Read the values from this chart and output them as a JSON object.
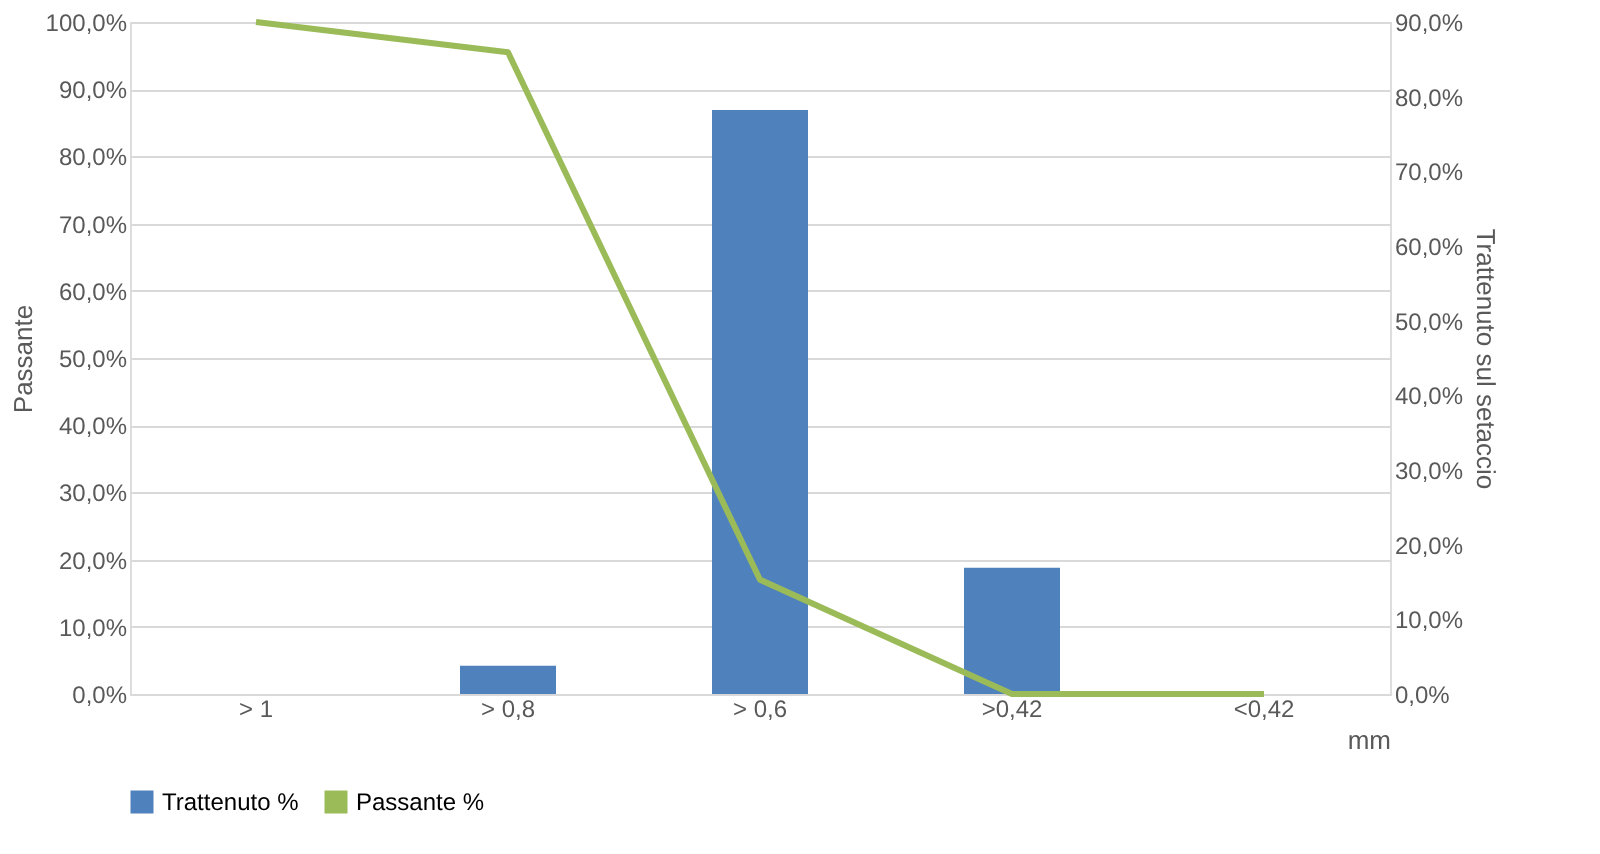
{
  "chart_data": {
    "type": "bar",
    "categories": [
      "> 1",
      "> 0,8",
      "> 0,6",
      ">0,42",
      "<0,42"
    ],
    "xlabel": "mm",
    "ylabel": "Passante",
    "y2label": "Trattenuto sul setaccio",
    "series": [
      {
        "name": "Trattenuto %",
        "axis": "y2",
        "color": "#4f81bd",
        "values": [
          0,
          3.8,
          78.2,
          16.9,
          0
        ]
      },
      {
        "name": "Passante %",
        "type": "line",
        "axis": "y",
        "color": "#9bbb59",
        "values": [
          100,
          95.5,
          17,
          0,
          0
        ]
      }
    ],
    "ylim": [
      0,
      100
    ],
    "yticks": [
      {
        "value": 0,
        "label": "0,0%"
      },
      {
        "value": 10,
        "label": "10,0%"
      },
      {
        "value": 20,
        "label": "20,0%"
      },
      {
        "value": 30,
        "label": "30,0%"
      },
      {
        "value": 40,
        "label": "40,0%"
      },
      {
        "value": 50,
        "label": "50,0%"
      },
      {
        "value": 60,
        "label": "60,0%"
      },
      {
        "value": 70,
        "label": "70,0%"
      },
      {
        "value": 80,
        "label": "80,0%"
      },
      {
        "value": 90,
        "label": "90,0%"
      },
      {
        "value": 100,
        "label": "100,0%"
      }
    ],
    "y2lim": [
      0,
      90
    ],
    "y2ticks": [
      {
        "value": 0,
        "label": "0,0%"
      },
      {
        "value": 10,
        "label": "10,0%"
      },
      {
        "value": 20,
        "label": "20,0%"
      },
      {
        "value": 30,
        "label": "30,0%"
      },
      {
        "value": 40,
        "label": "40,0%"
      },
      {
        "value": 50,
        "label": "50,0%"
      },
      {
        "value": 60,
        "label": "60,0%"
      },
      {
        "value": 70,
        "label": "70,0%"
      },
      {
        "value": 80,
        "label": "80,0%"
      },
      {
        "value": 90,
        "label": "90,0%"
      }
    ],
    "grid": "y",
    "legend": "bottom",
    "marker": "none"
  }
}
